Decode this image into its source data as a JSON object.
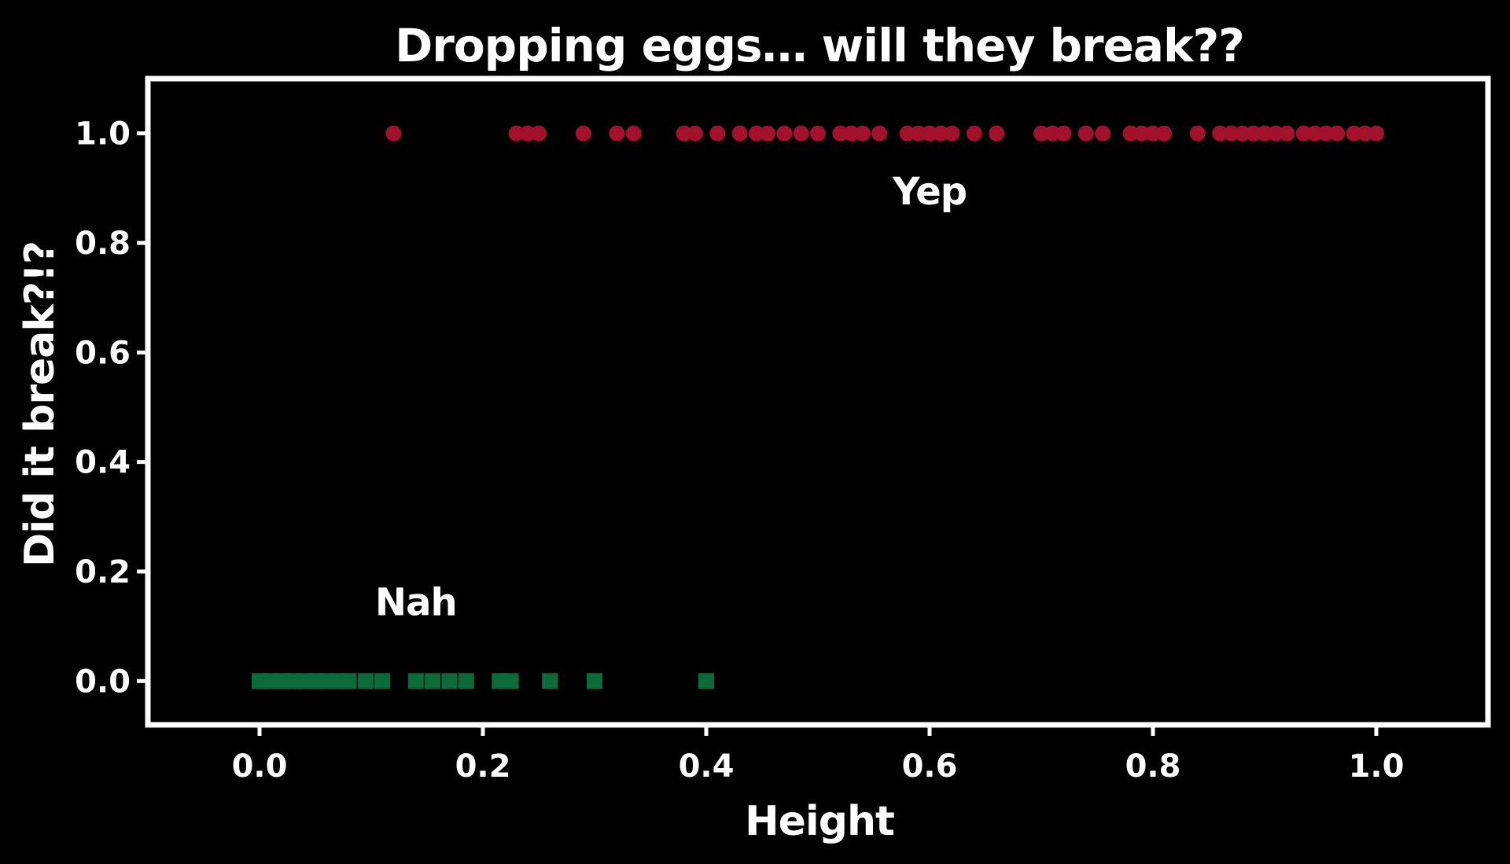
{
  "chart_data": {
    "type": "scatter",
    "title": "Dropping eggs… will they break??",
    "xlabel": "Height",
    "ylabel": "Did it break?!?",
    "xlim": [
      -0.1,
      1.1
    ],
    "ylim": [
      -0.08,
      1.1
    ],
    "xticks": [
      0.0,
      0.2,
      0.4,
      0.6,
      0.8,
      1.0
    ],
    "xtick_labels": [
      "0.0",
      "0.2",
      "0.4",
      "0.6",
      "0.8",
      "1.0"
    ],
    "yticks": [
      0.0,
      0.2,
      0.4,
      0.6,
      0.8,
      1.0
    ],
    "ytick_labels": [
      "0.0",
      "0.2",
      "0.4",
      "0.6",
      "0.8",
      "1.0"
    ],
    "grid": false,
    "background_color": "#000000",
    "foreground_color": "#ffffff",
    "series": [
      {
        "color": "#0b6b3a",
        "marker": "square",
        "points": [
          {
            "x": 0.0,
            "y": 0
          },
          {
            "x": 0.01,
            "y": 0
          },
          {
            "x": 0.02,
            "y": 0
          },
          {
            "x": 0.03,
            "y": 0
          },
          {
            "x": 0.04,
            "y": 0
          },
          {
            "x": 0.05,
            "y": 0
          },
          {
            "x": 0.06,
            "y": 0
          },
          {
            "x": 0.07,
            "y": 0
          },
          {
            "x": 0.08,
            "y": 0
          },
          {
            "x": 0.095,
            "y": 0
          },
          {
            "x": 0.11,
            "y": 0
          },
          {
            "x": 0.14,
            "y": 0
          },
          {
            "x": 0.155,
            "y": 0
          },
          {
            "x": 0.17,
            "y": 0
          },
          {
            "x": 0.185,
            "y": 0
          },
          {
            "x": 0.215,
            "y": 0
          },
          {
            "x": 0.225,
            "y": 0
          },
          {
            "x": 0.26,
            "y": 0
          },
          {
            "x": 0.3,
            "y": 0
          },
          {
            "x": 0.4,
            "y": 0
          }
        ]
      },
      {
        "color": "#a3122d",
        "marker": "circle",
        "points": [
          {
            "x": 0.12,
            "y": 1
          },
          {
            "x": 0.23,
            "y": 1
          },
          {
            "x": 0.24,
            "y": 1
          },
          {
            "x": 0.25,
            "y": 1
          },
          {
            "x": 0.29,
            "y": 1
          },
          {
            "x": 0.32,
            "y": 1
          },
          {
            "x": 0.335,
            "y": 1
          },
          {
            "x": 0.38,
            "y": 1
          },
          {
            "x": 0.39,
            "y": 1
          },
          {
            "x": 0.41,
            "y": 1
          },
          {
            "x": 0.43,
            "y": 1
          },
          {
            "x": 0.445,
            "y": 1
          },
          {
            "x": 0.455,
            "y": 1
          },
          {
            "x": 0.47,
            "y": 1
          },
          {
            "x": 0.485,
            "y": 1
          },
          {
            "x": 0.5,
            "y": 1
          },
          {
            "x": 0.52,
            "y": 1
          },
          {
            "x": 0.53,
            "y": 1
          },
          {
            "x": 0.54,
            "y": 1
          },
          {
            "x": 0.555,
            "y": 1
          },
          {
            "x": 0.58,
            "y": 1
          },
          {
            "x": 0.59,
            "y": 1
          },
          {
            "x": 0.6,
            "y": 1
          },
          {
            "x": 0.61,
            "y": 1
          },
          {
            "x": 0.62,
            "y": 1
          },
          {
            "x": 0.64,
            "y": 1
          },
          {
            "x": 0.66,
            "y": 1
          },
          {
            "x": 0.7,
            "y": 1
          },
          {
            "x": 0.71,
            "y": 1
          },
          {
            "x": 0.72,
            "y": 1
          },
          {
            "x": 0.74,
            "y": 1
          },
          {
            "x": 0.755,
            "y": 1
          },
          {
            "x": 0.78,
            "y": 1
          },
          {
            "x": 0.79,
            "y": 1
          },
          {
            "x": 0.8,
            "y": 1
          },
          {
            "x": 0.81,
            "y": 1
          },
          {
            "x": 0.84,
            "y": 1
          },
          {
            "x": 0.86,
            "y": 1
          },
          {
            "x": 0.87,
            "y": 1
          },
          {
            "x": 0.88,
            "y": 1
          },
          {
            "x": 0.89,
            "y": 1
          },
          {
            "x": 0.9,
            "y": 1
          },
          {
            "x": 0.91,
            "y": 1
          },
          {
            "x": 0.92,
            "y": 1
          },
          {
            "x": 0.935,
            "y": 1
          },
          {
            "x": 0.945,
            "y": 1
          },
          {
            "x": 0.955,
            "y": 1
          },
          {
            "x": 0.965,
            "y": 1
          },
          {
            "x": 0.98,
            "y": 1
          },
          {
            "x": 0.99,
            "y": 1
          },
          {
            "x": 1.0,
            "y": 1
          }
        ]
      }
    ],
    "annotations": [
      {
        "text": "Yep",
        "x": 0.6,
        "y": 0.87
      },
      {
        "text": "Nah",
        "x": 0.14,
        "y": 0.12
      }
    ]
  }
}
